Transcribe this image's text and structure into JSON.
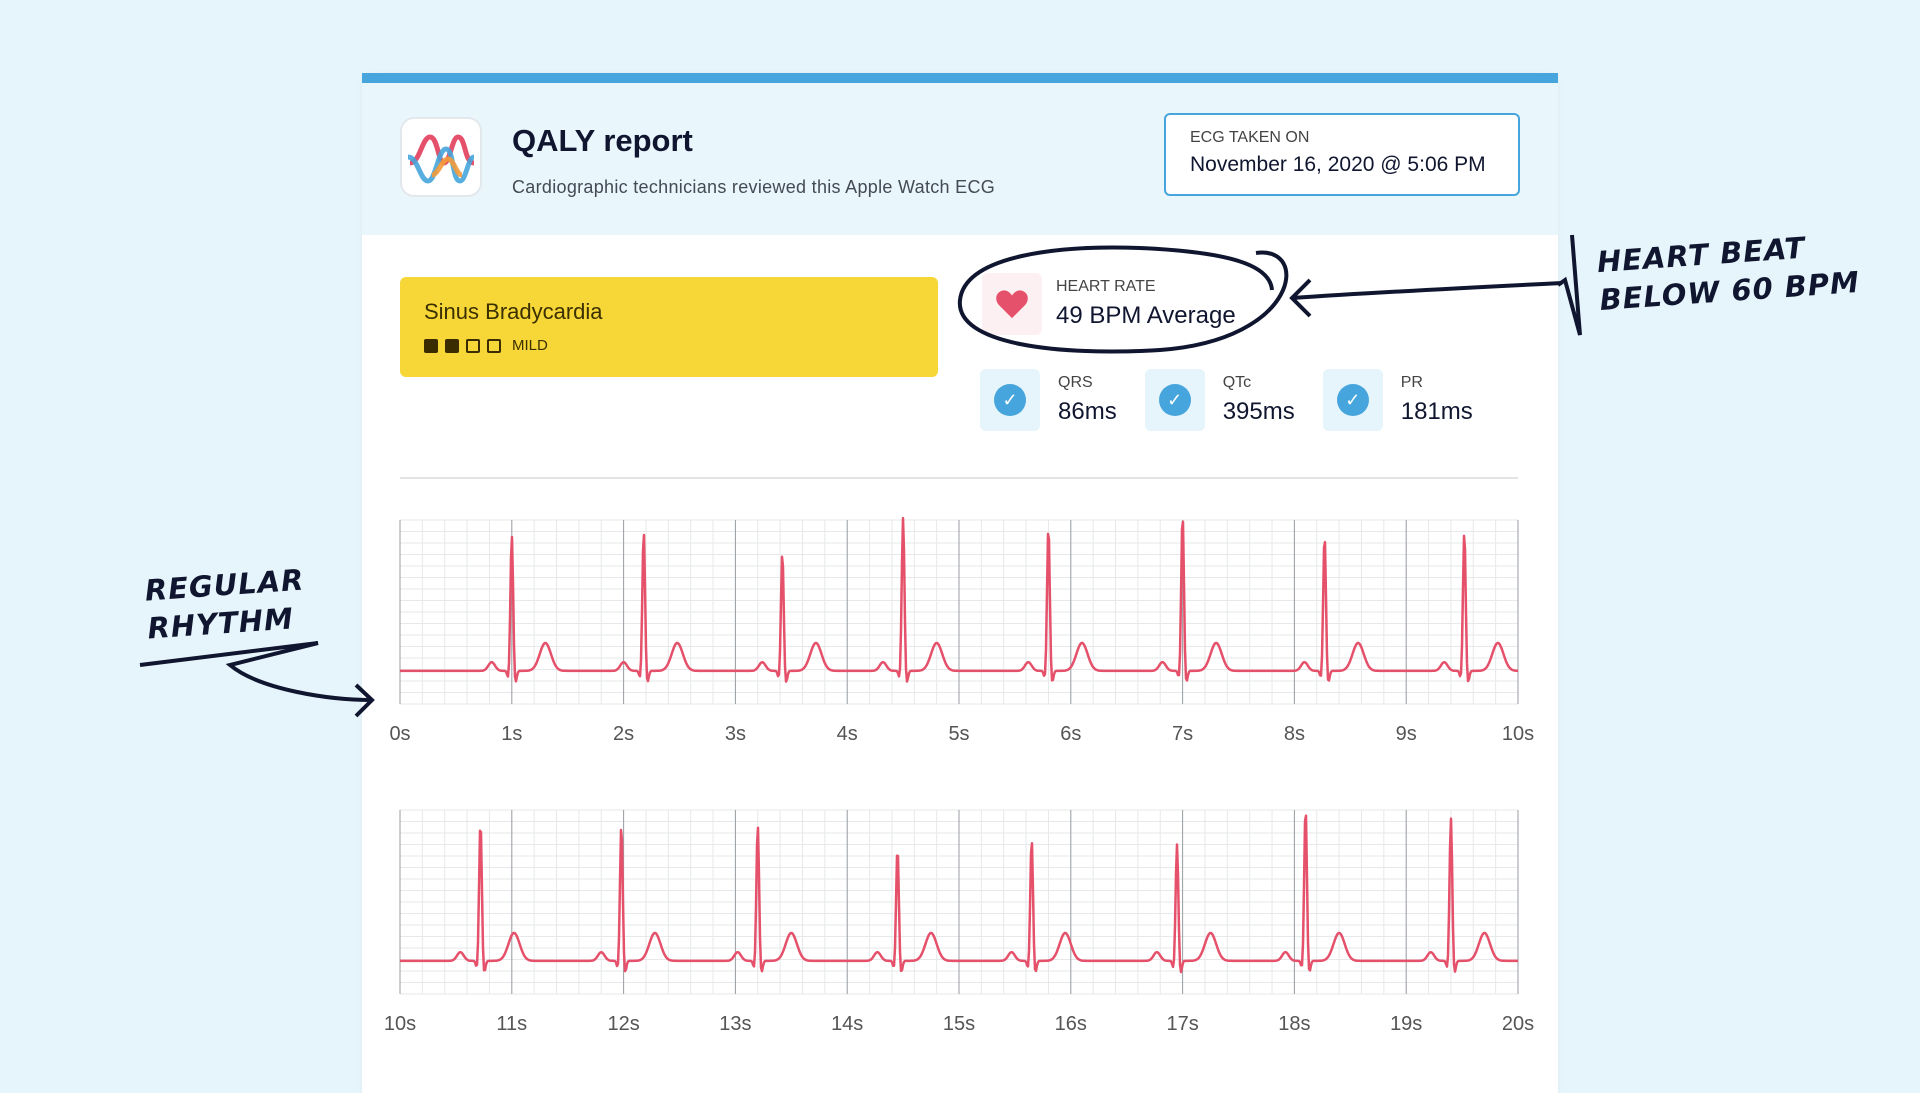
{
  "header": {
    "title": "QALY report",
    "subtitle": "Cardiographic technicians reviewed this Apple Watch ECG",
    "logo_icon": "qaly-wave-logo"
  },
  "ecg_date": {
    "label": "ECG TAKEN ON",
    "value": "November 16, 2020 @ 5:06 PM"
  },
  "diagnosis": {
    "name": "Sinus Bradycardia",
    "severity_label": "MILD",
    "severity_level": 2,
    "severity_max": 4,
    "color": "#f7d637"
  },
  "heart_rate": {
    "label": "HEART RATE",
    "value": "49 BPM Average",
    "icon": "heart-icon"
  },
  "metrics": [
    {
      "label": "QRS",
      "value": "86ms"
    },
    {
      "label": "QTc",
      "value": "395ms"
    },
    {
      "label": "PR",
      "value": "181ms"
    }
  ],
  "annotations": {
    "right": [
      "HEART BEAT",
      "BELOW 60 BPM"
    ],
    "left": [
      "REGULAR",
      "RHYTHM"
    ]
  },
  "chart_data": [
    {
      "type": "line",
      "xlabel": "",
      "ylabel": "",
      "xlim": [
        0,
        10
      ],
      "x_ticks": [
        "0s",
        "1s",
        "2s",
        "3s",
        "4s",
        "5s",
        "6s",
        "7s",
        "8s",
        "9s",
        "10s"
      ],
      "grid": true,
      "color": "#e5506a",
      "r_peak_times_s": [
        1.0,
        2.18,
        3.42,
        4.5,
        5.8,
        7.0,
        8.27,
        9.52
      ],
      "r_peak_relative_amplitude": [
        0.78,
        0.8,
        0.68,
        0.88,
        0.83,
        0.9,
        0.78,
        0.8
      ]
    },
    {
      "type": "line",
      "xlabel": "",
      "ylabel": "",
      "xlim": [
        10,
        20
      ],
      "x_ticks": [
        "10s",
        "11s",
        "12s",
        "13s",
        "14s",
        "15s",
        "16s",
        "17s",
        "18s",
        "19s",
        "20s"
      ],
      "grid": true,
      "color": "#e5506a",
      "r_peak_times_s": [
        10.72,
        11.98,
        13.2,
        14.45,
        15.65,
        16.95,
        18.1,
        19.4
      ],
      "r_peak_relative_amplitude": [
        0.8,
        0.78,
        0.78,
        0.65,
        0.7,
        0.67,
        0.88,
        0.82
      ]
    }
  ]
}
